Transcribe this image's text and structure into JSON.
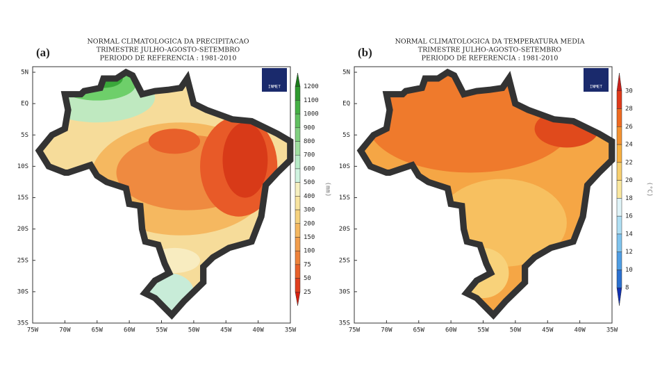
{
  "panels": [
    {
      "label": "(a)",
      "title": [
        "NORMAL CLIMATOLOGICA DA PRECIPITACAO",
        "TRIMESTRE JULHO-AGOSTO-SETEMBRO",
        "PERIODO DE REFERENCIA : 1981-2010"
      ],
      "logo": "INMET",
      "unit": "(mm)",
      "colorbar_ticks": [
        1200,
        1100,
        1000,
        900,
        800,
        700,
        600,
        500,
        400,
        300,
        200,
        150,
        100,
        75,
        50,
        25
      ],
      "colorbar_colors": [
        "#1a7a1a",
        "#2e9a2e",
        "#45b045",
        "#60c060",
        "#80d080",
        "#a0e0a0",
        "#b8ecc8",
        "#d0f4e0",
        "#f6f0c0",
        "#f8e4a0",
        "#f6d27e",
        "#f5b860",
        "#f29e4c",
        "#ee823a",
        "#e8602a",
        "#e03e1e",
        "#d42010"
      ],
      "lat_ticks": [
        "5N",
        "EQ",
        "5S",
        "10S",
        "15S",
        "20S",
        "25S",
        "30S",
        "35S"
      ],
      "lon_ticks": [
        "75W",
        "70W",
        "65W",
        "60W",
        "55W",
        "50W",
        "45W",
        "40W",
        "35W"
      ]
    },
    {
      "label": "(b)",
      "title": [
        "NORMAL CLIMATOLOGICA DA TEMPERATURA MEDIA",
        "TRIMESTRE JULHO-AGOSTO-SETEMBRO",
        "PERIODO DE REFERENCIA : 1981-2010"
      ],
      "logo": "INMET",
      "unit": "(°C)",
      "colorbar_ticks": [
        30,
        28,
        26,
        24,
        22,
        20,
        18,
        16,
        14,
        12,
        10,
        8
      ],
      "colorbar_colors": [
        "#c8201a",
        "#e03a1a",
        "#ef6a20",
        "#f59230",
        "#f8b040",
        "#f8d070",
        "#fae8a0",
        "#e0f4f8",
        "#b0e0f4",
        "#80c4ee",
        "#4f9ee4",
        "#2a70d0",
        "#1030b0"
      ],
      "lat_ticks": [
        "5N",
        "EQ",
        "5S",
        "10S",
        "15S",
        "20S",
        "25S",
        "30S",
        "35S"
      ],
      "lon_ticks": [
        "75W",
        "70W",
        "65W",
        "60W",
        "55W",
        "50W",
        "45W",
        "40W",
        "35W"
      ]
    }
  ]
}
